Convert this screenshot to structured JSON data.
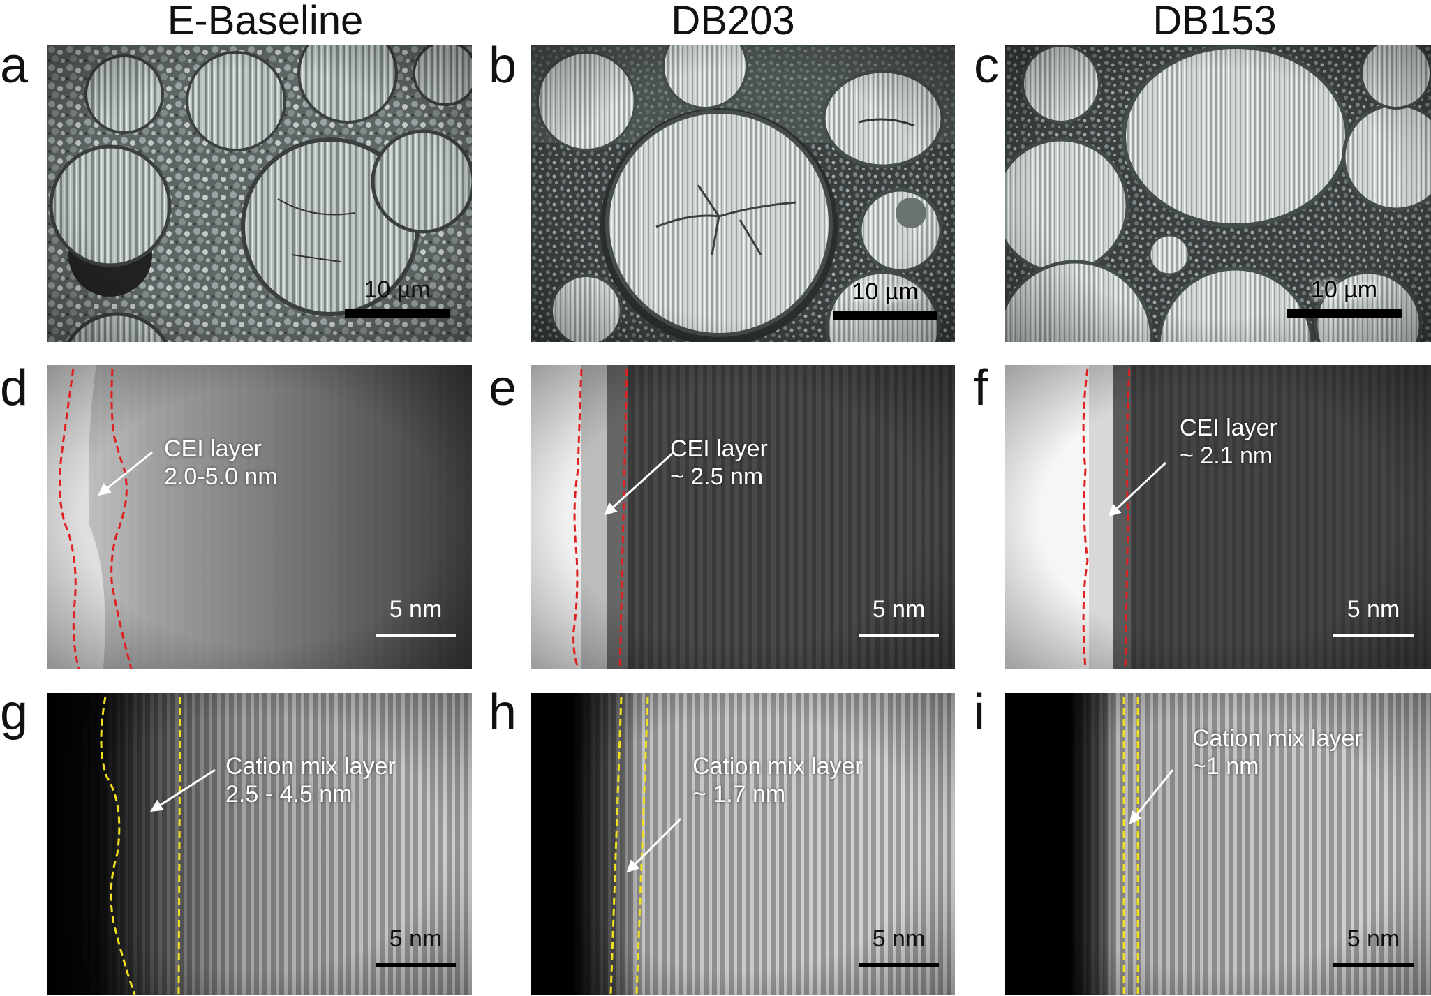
{
  "columns": [
    {
      "title": "E-Baseline"
    },
    {
      "title": "DB203"
    },
    {
      "title": "DB153"
    }
  ],
  "panels": {
    "a": {
      "label": "a",
      "scale": "10 µm"
    },
    "b": {
      "label": "b",
      "scale": "10 µm"
    },
    "c": {
      "label": "c",
      "scale": "10 µm"
    },
    "d": {
      "label": "d",
      "scale": "5 nm",
      "annot_line1": "CEI layer",
      "annot_line2": "2.0-5.0 nm"
    },
    "e": {
      "label": "e",
      "scale": "5 nm",
      "annot_line1": "CEI layer",
      "annot_line2": "~ 2.5 nm"
    },
    "f": {
      "label": "f",
      "scale": "5 nm",
      "annot_line1": "CEI layer",
      "annot_line2": "~ 2.1 nm"
    },
    "g": {
      "label": "g",
      "scale": "5 nm",
      "annot_line1": "Cation mix layer",
      "annot_line2": "2.5 - 4.5 nm"
    },
    "h": {
      "label": "h",
      "scale": "5 nm",
      "annot_line1": "Cation mix layer",
      "annot_line2": "~ 1.7 nm"
    },
    "i": {
      "label": "i",
      "scale": "5 nm",
      "annot_line1": "Cation mix layer",
      "annot_line2": "~1 nm"
    }
  },
  "colors": {
    "cei_boundary": "#e02020",
    "cation_boundary": "#f0e020",
    "annotation_text": "#ffffff",
    "scale_bar": "#000000"
  }
}
